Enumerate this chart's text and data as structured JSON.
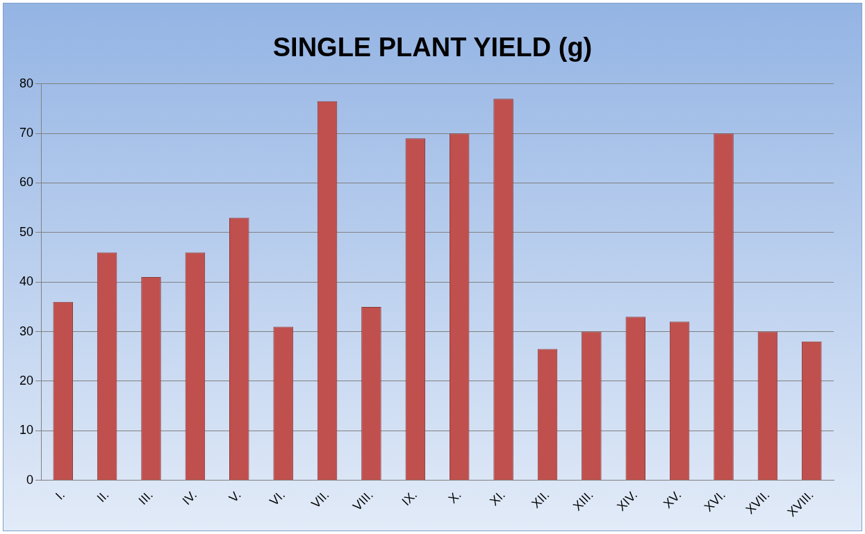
{
  "chart_data": {
    "type": "bar",
    "title": "SINGLE PLANT YIELD (g)",
    "categories": [
      "I.",
      "II.",
      "III.",
      "IV.",
      "V.",
      "VI.",
      "VII.",
      "VIII.",
      "IX.",
      "X.",
      "XI.",
      "XII.",
      "XIII.",
      "XIV.",
      "XV.",
      "XVI.",
      "XVII.",
      "XVIII."
    ],
    "values": [
      36,
      46,
      41,
      46,
      53,
      31,
      76.5,
      35,
      69,
      70,
      77,
      26.5,
      30,
      33,
      32,
      70,
      30,
      28
    ],
    "color": "#c0504d",
    "ylim": [
      0,
      80
    ],
    "yticks": [
      0,
      10,
      20,
      30,
      40,
      50,
      60,
      70,
      80
    ],
    "grid": "y"
  }
}
